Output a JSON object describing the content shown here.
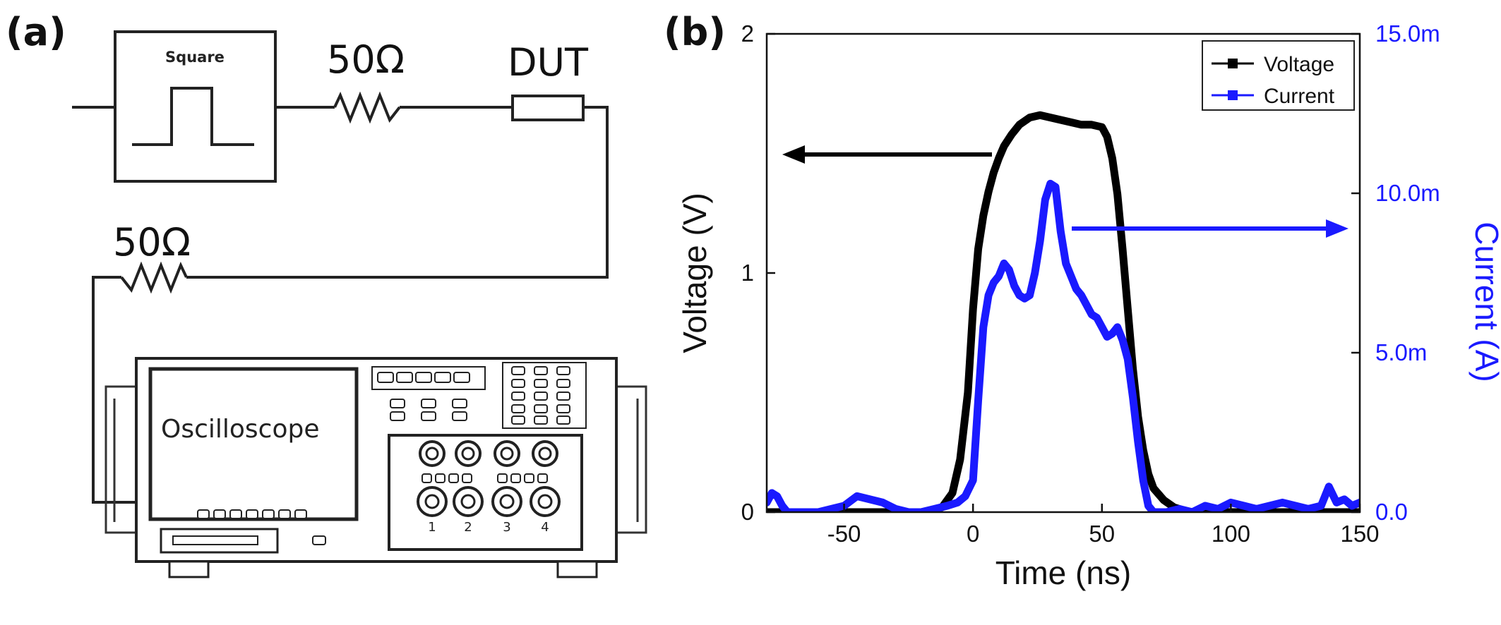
{
  "panel_a": {
    "label": "(a)",
    "generator_label": "Square",
    "series_resistor_label": "50Ω",
    "dut_label": "DUT",
    "shunt_resistor_label": "50Ω",
    "oscilloscope_label": "Oscilloscope",
    "port_numbers": [
      "1",
      "2",
      "3",
      "4"
    ]
  },
  "panel_b": {
    "label": "(b)",
    "colors": {
      "voltage": "#000000",
      "current": "#1a1aff",
      "arrow_voltage": "#000000",
      "arrow_current": "#1a1aff"
    }
  },
  "chart_data": {
    "type": "line",
    "title": "",
    "xlabel": "Time (ns)",
    "ylabel": "Voltage (V)",
    "y2label": "Current (A)",
    "xlim": [
      -80,
      150
    ],
    "ylim": [
      0,
      2
    ],
    "y2lim": [
      0,
      0.015
    ],
    "x_ticks": [
      -50,
      0,
      50,
      100,
      150
    ],
    "x_tick_labels": [
      "-50",
      "0",
      "50",
      "100",
      "150"
    ],
    "y_ticks": [
      0,
      1,
      2
    ],
    "y_tick_labels": [
      "0",
      "1",
      "2"
    ],
    "y2_ticks": [
      0,
      0.005,
      0.01,
      0.015
    ],
    "y2_tick_labels": [
      "0.0",
      "5.0m",
      "10.0m",
      "15.0m"
    ],
    "legend": {
      "position": "top-right",
      "entries": [
        "Voltage",
        "Current"
      ]
    },
    "series": [
      {
        "name": "Voltage",
        "axis": "left",
        "x": [
          -80,
          -20,
          -12,
          -8,
          -5,
          -2,
          0,
          2,
          4,
          6,
          8,
          10,
          12,
          15,
          18,
          22,
          26,
          30,
          34,
          38,
          42,
          46,
          50,
          52,
          54,
          56,
          58,
          60,
          62,
          64,
          66,
          68,
          70,
          74,
          78,
          84,
          150
        ],
        "values": [
          0,
          0,
          0.02,
          0.08,
          0.22,
          0.5,
          0.85,
          1.1,
          1.24,
          1.34,
          1.42,
          1.48,
          1.53,
          1.58,
          1.62,
          1.65,
          1.66,
          1.65,
          1.64,
          1.63,
          1.62,
          1.62,
          1.61,
          1.57,
          1.48,
          1.33,
          1.1,
          0.85,
          0.6,
          0.4,
          0.26,
          0.16,
          0.1,
          0.05,
          0.02,
          0,
          0
        ]
      },
      {
        "name": "Current",
        "axis": "right",
        "x": [
          -80,
          -78,
          -76,
          -74,
          -72,
          -70,
          -65,
          -60,
          -55,
          -50,
          -45,
          -40,
          -35,
          -30,
          -25,
          -20,
          -15,
          -10,
          -6,
          -3,
          0,
          2,
          4,
          6,
          8,
          10,
          12,
          14,
          16,
          18,
          20,
          22,
          24,
          26,
          28,
          30,
          32,
          34,
          36,
          38,
          40,
          42,
          44,
          46,
          48,
          50,
          52,
          54,
          56,
          58,
          60,
          62,
          64,
          66,
          68,
          70,
          75,
          80,
          85,
          90,
          95,
          100,
          105,
          110,
          115,
          120,
          125,
          130,
          135,
          138,
          141,
          144,
          147,
          150
        ],
        "values": [
          0.0003,
          0.0006,
          0.0005,
          0.0002,
          0,
          0,
          0,
          0,
          0.0001,
          0.0002,
          0.0005,
          0.0004,
          0.0003,
          0.0001,
          0,
          0,
          0.0001,
          0.0002,
          0.0003,
          0.0005,
          0.001,
          0.0035,
          0.0058,
          0.0068,
          0.0072,
          0.0074,
          0.0078,
          0.0076,
          0.0071,
          0.0068,
          0.0067,
          0.0068,
          0.0075,
          0.0085,
          0.0098,
          0.0103,
          0.0102,
          0.0088,
          0.0078,
          0.0074,
          0.007,
          0.0068,
          0.0065,
          0.0062,
          0.0061,
          0.0058,
          0.0055,
          0.0056,
          0.0058,
          0.0054,
          0.0048,
          0.0036,
          0.0022,
          0.001,
          0.0002,
          0,
          0,
          0.0001,
          0,
          0.0002,
          0.0001,
          0.0003,
          0.0002,
          0.0001,
          0.0002,
          0.0003,
          0.0002,
          0.0001,
          0.0002,
          0.0008,
          0.0003,
          0.0004,
          0.0002,
          0.0003
        ]
      }
    ],
    "annotations": [
      {
        "type": "arrow",
        "points_to": "left axis (Voltage)",
        "color": "black"
      },
      {
        "type": "arrow",
        "points_to": "right axis (Current)",
        "color": "blue"
      }
    ]
  }
}
